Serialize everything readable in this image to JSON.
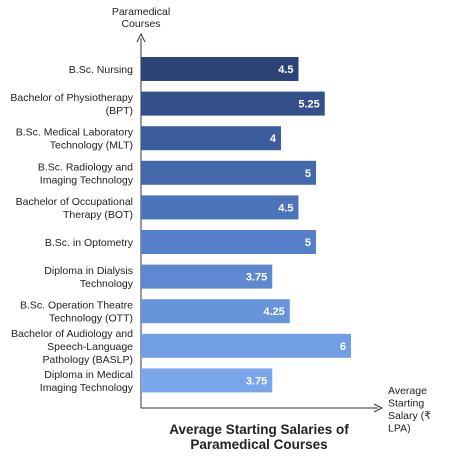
{
  "chart_data": {
    "type": "bar",
    "orientation": "horizontal",
    "title": "Average Starting Salaries of Paramedical Courses",
    "title_lines": [
      "Average Starting Salaries of",
      "Paramedical Courses"
    ],
    "ylabel_lines": [
      "Paramedical",
      "Courses"
    ],
    "xlabel_lines": [
      "Average",
      "Starting",
      "Salary (₹",
      "LPA)"
    ],
    "categories": [
      [
        "B.Sc. Nursing"
      ],
      [
        "Bachelor of Physiotherapy",
        "(BPT)"
      ],
      [
        "B.Sc. Medical Laboratory",
        "Technology (MLT)"
      ],
      [
        "B.Sc. Radiology and",
        "Imaging Technology"
      ],
      [
        "Bachelor of Occupational",
        "Therapy (BOT)"
      ],
      [
        "B.Sc. in Optometry"
      ],
      [
        "Diploma in Dialysis",
        "Technology"
      ],
      [
        "B.Sc. Operation Theatre",
        "Technology (OTT)"
      ],
      [
        "Bachelor of Audiology and",
        "Speech-Language",
        "Pathology (BASLP)"
      ],
      [
        "Diploma in Medical",
        "Imaging Technology"
      ]
    ],
    "values": [
      4.5,
      5.25,
      4,
      5,
      4.5,
      5,
      3.75,
      4.25,
      6,
      3.75
    ],
    "value_labels": [
      "4.5",
      "5.25",
      "4",
      "5",
      "4.5",
      "5",
      "3.75",
      "4.25",
      "6",
      "3.75"
    ],
    "colors": [
      "#2b4377",
      "#33508a",
      "#3b5d9c",
      "#4468ac",
      "#4c74ba",
      "#557fc7",
      "#5e89d1",
      "#6794db",
      "#719ee4",
      "#79a6ea"
    ],
    "xlim": [
      0,
      6
    ],
    "grid": false,
    "legend": "none"
  }
}
